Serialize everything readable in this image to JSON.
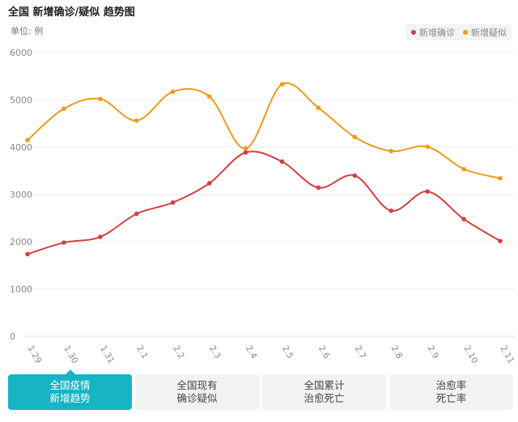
{
  "header": {
    "title": "全国 新增确诊/疑似 趋势图",
    "unit": "单位: 例"
  },
  "legend": [
    {
      "label": "新增确诊",
      "color": "#d33f3f"
    },
    {
      "label": "新增疑似",
      "color": "#ee9a1a"
    }
  ],
  "tabs": [
    {
      "line1": "全国疫情",
      "line2": "新增趋势",
      "active": true
    },
    {
      "line1": "全国现有",
      "line2": "确诊疑似",
      "active": false
    },
    {
      "line1": "全国累计",
      "line2": "治愈死亡",
      "active": false
    },
    {
      "line1": "治愈率",
      "line2": "死亡率",
      "active": false
    }
  ],
  "chart_data": {
    "type": "line",
    "title": "全国 新增确诊/疑似 趋势图",
    "categories": [
      "1.29",
      "1.30",
      "1.31",
      "2.1",
      "2.2",
      "2.3",
      "2.4",
      "2.5",
      "2.6",
      "2.7",
      "2.8",
      "2.9",
      "2.10",
      "2.11"
    ],
    "yticks": [
      "0",
      "1000",
      "2000",
      "3000",
      "4000",
      "5000",
      "6000"
    ],
    "ylim": [
      0,
      6000
    ],
    "grid": true,
    "legend_position": "top-right",
    "series": [
      {
        "name": "新增确诊",
        "color": "#d33f3f",
        "values": [
          1737,
          1982,
          2102,
          2590,
          2829,
          3235,
          3887,
          3694,
          3143,
          3399,
          2656,
          3062,
          2478,
          2015
        ]
      },
      {
        "name": "新增疑似",
        "color": "#ee9a1a",
        "values": [
          4148,
          4812,
          5019,
          4562,
          5173,
          5072,
          3971,
          5328,
          4833,
          4214,
          3916,
          4008,
          3536,
          3342
        ]
      }
    ]
  }
}
